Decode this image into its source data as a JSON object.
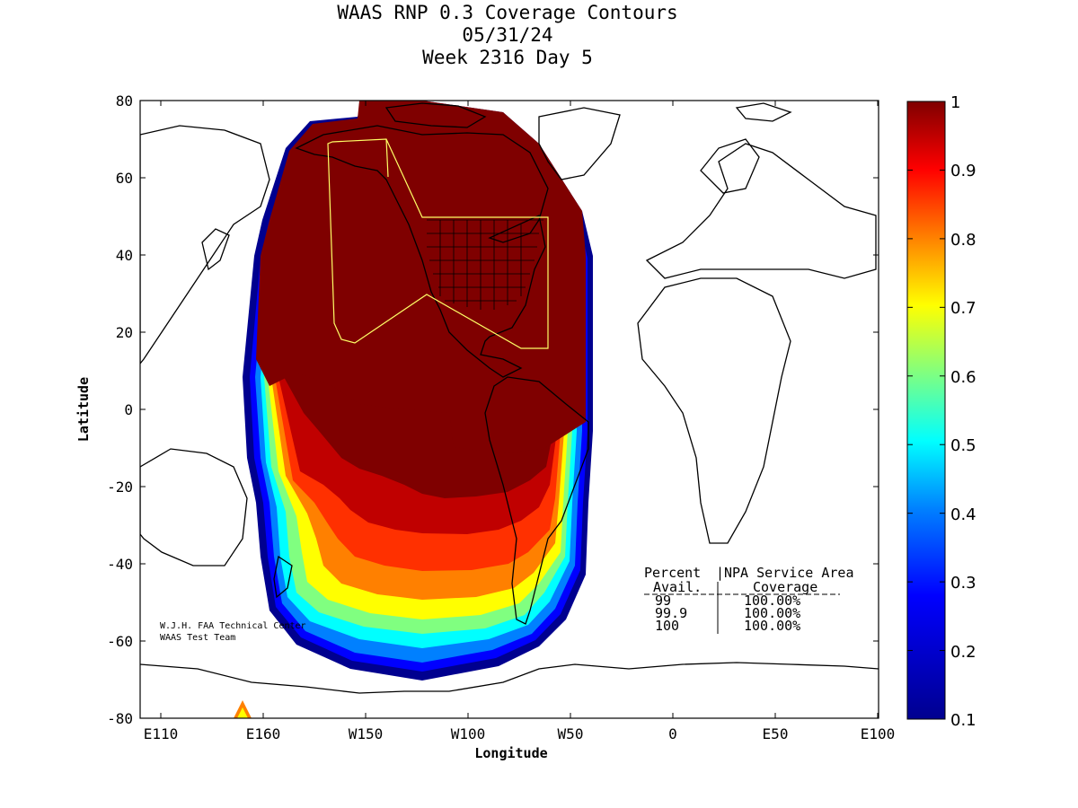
{
  "title": {
    "line1": "WAAS RNP 0.3 Coverage Contours",
    "line2": "05/31/24",
    "line3": "Week 2316 Day 5"
  },
  "axes": {
    "xlabel": "Longitude",
    "ylabel": "Latitude",
    "x_ticks": [
      "E110",
      "E160",
      "W150",
      "W100",
      "W50",
      "0",
      "E50",
      "E100"
    ],
    "y_ticks": [
      "80",
      "60",
      "40",
      "20",
      "0",
      "-20",
      "-40",
      "-60",
      "-80"
    ]
  },
  "colorbar": {
    "ticks": [
      "1",
      "0.9",
      "0.8",
      "0.7",
      "0.6",
      "0.5",
      "0.4",
      "0.3",
      "0.2",
      "0.1"
    ],
    "colors": [
      "#7f0000",
      "#ff0000",
      "#ff8000",
      "#ffff00",
      "#80ff80",
      "#00ffff",
      "#0080ff",
      "#0000ff",
      "#00008f"
    ]
  },
  "table": {
    "header1_left": "Percent",
    "header1_right": "NPA Service Area",
    "header2_left": "Avail.",
    "header2_right": "Coverage",
    "rows": [
      {
        "avail": "99",
        "coverage": "100.00%"
      },
      {
        "avail": "99.9",
        "coverage": "100.00%"
      },
      {
        "avail": "100",
        "coverage": "100.00%"
      }
    ]
  },
  "credit": {
    "line1": "W.J.H. FAA Technical Center",
    "line2": "WAAS Test Team"
  },
  "map": {
    "coverage_color": "#7f0000",
    "service_area_outline_color": "#ffff66"
  }
}
